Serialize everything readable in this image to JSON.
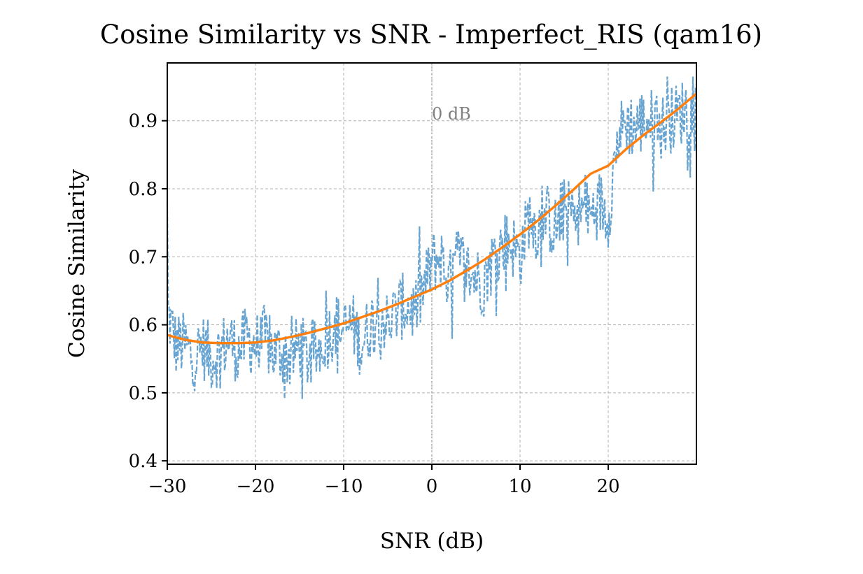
{
  "chart_data": {
    "type": "line",
    "title": "Cosine Similarity vs SNR - Imperfect_RIS (qam16)",
    "xlabel": "SNR (dB)",
    "ylabel": "Cosine Similarity",
    "xlim": [
      -30,
      30
    ],
    "ylim": [
      0.395,
      0.985
    ],
    "xticks": [
      -30,
      -20,
      -10,
      0,
      10,
      20
    ],
    "xtick_labels": [
      "−30",
      "−20",
      "−10",
      "0",
      "10",
      "20"
    ],
    "yticks": [
      0.4,
      0.5,
      0.6,
      0.7,
      0.8,
      0.9
    ],
    "ytick_labels": [
      "0.4",
      "0.5",
      "0.6",
      "0.7",
      "0.8",
      "0.9"
    ],
    "grid": true,
    "legend": "none",
    "annotations": [
      {
        "text": "0 dB",
        "x": 0,
        "y": 0.91,
        "vline_x": 0
      }
    ],
    "series": [
      {
        "style": "dashed",
        "color": "#5f9fcf",
        "x": [
          -30,
          -29,
          -28,
          -27,
          -26,
          -25,
          -24,
          -23,
          -22,
          -21,
          -20,
          -19,
          -18,
          -17,
          -16,
          -15,
          -14,
          -13,
          -12,
          -11,
          -10,
          -9,
          -8,
          -7,
          -6,
          -5,
          -4,
          -3,
          -2,
          -1,
          0,
          1,
          2,
          3,
          4,
          5,
          6,
          7,
          8,
          9,
          10,
          11,
          12,
          13,
          14,
          15,
          16,
          17,
          18,
          19,
          20,
          21,
          22,
          23,
          24,
          25,
          26,
          27,
          28,
          29,
          30
        ],
        "values": [
          0.62,
          0.57,
          0.57,
          0.55,
          0.57,
          0.55,
          0.56,
          0.58,
          0.56,
          0.58,
          0.57,
          0.58,
          0.56,
          0.56,
          0.55,
          0.57,
          0.55,
          0.56,
          0.58,
          0.6,
          0.59,
          0.6,
          0.57,
          0.6,
          0.62,
          0.6,
          0.62,
          0.63,
          0.62,
          0.65,
          0.69,
          0.7,
          0.66,
          0.7,
          0.68,
          0.67,
          0.66,
          0.7,
          0.72,
          0.72,
          0.7,
          0.76,
          0.74,
          0.76,
          0.74,
          0.77,
          0.76,
          0.77,
          0.76,
          0.78,
          0.76,
          0.87,
          0.9,
          0.89,
          0.9,
          0.9,
          0.89,
          0.9,
          0.91,
          0.92,
          0.9
        ],
        "noise_amplitude": 0.05
      },
      {
        "style": "solid",
        "color": "#ff7f0e",
        "x": [
          -30,
          -28,
          -26,
          -24,
          -22,
          -20,
          -18,
          -16,
          -14,
          -12,
          -10,
          -8,
          -6,
          -4,
          -2,
          0,
          2,
          4,
          6,
          8,
          10,
          12,
          14,
          16,
          18,
          20,
          22,
          24,
          26,
          28,
          30
        ],
        "values": [
          0.585,
          0.578,
          0.574,
          0.573,
          0.573,
          0.574,
          0.577,
          0.582,
          0.588,
          0.595,
          0.602,
          0.611,
          0.62,
          0.63,
          0.641,
          0.652,
          0.665,
          0.68,
          0.696,
          0.714,
          0.733,
          0.753,
          0.775,
          0.798,
          0.822,
          0.834,
          0.858,
          0.879,
          0.898,
          0.918,
          0.94
        ]
      }
    ]
  }
}
